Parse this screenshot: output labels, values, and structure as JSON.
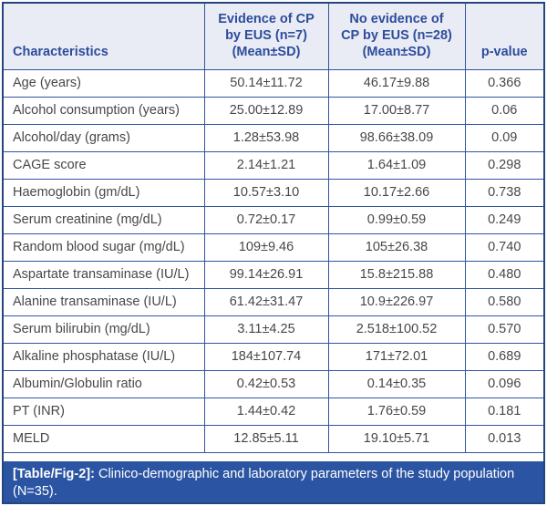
{
  "colors": {
    "header_bg": "#eaecf5",
    "header_text": "#2d4c9c",
    "grid_line": "#2f55a0",
    "frame_border": "#24457e",
    "body_text": "#474747",
    "caption_bg": "#2b54a3",
    "caption_text": "#ffffff"
  },
  "table": {
    "columns": [
      "Characteristics",
      "Evidence of CP\nby EUS (n=7)\n(Mean±SD)",
      "No evidence of\nCP by EUS (n=28)\n(Mean±SD)",
      "p-value"
    ],
    "rows": [
      [
        "Age (years)",
        "50.14±11.72",
        "46.17±9.88",
        "0.366"
      ],
      [
        "Alcohol consumption (years)",
        "25.00±12.89",
        "17.00±8.77",
        "0.06"
      ],
      [
        "Alcohol/day (grams)",
        "1.28±53.98",
        "98.66±38.09",
        "0.09"
      ],
      [
        "CAGE score",
        "2.14±1.21",
        "1.64±1.09",
        "0.298"
      ],
      [
        "Haemoglobin (gm/dL)",
        "10.57±3.10",
        "10.17±2.66",
        "0.738"
      ],
      [
        "Serum creatinine (mg/dL)",
        "0.72±0.17",
        "0.99±0.59",
        "0.249"
      ],
      [
        "Random blood sugar (mg/dL)",
        "109±9.46",
        "105±26.38",
        "0.740"
      ],
      [
        "Aspartate transaminase (IU/L)",
        "99.14±26.91",
        "15.8±215.88",
        "0.480"
      ],
      [
        "Alanine transaminase (IU/L)",
        "61.42±31.47",
        "10.9±226.97",
        "0.580"
      ],
      [
        "Serum bilirubin (mg/dL)",
        "3.11±4.25",
        "2.518±100.52",
        "0.570"
      ],
      [
        "Alkaline phosphatase (IU/L)",
        "184±107.74",
        "171±72.01",
        "0.689"
      ],
      [
        "Albumin/Globulin ratio",
        "0.42±0.53",
        "0.14±0.35",
        "0.096"
      ],
      [
        "PT (INR)",
        "1.44±0.42",
        "1.76±0.59",
        "0.181"
      ],
      [
        "MELD",
        "12.85±5.11",
        "19.10±5.71",
        "0.013"
      ]
    ]
  },
  "caption": {
    "label": "[Table/Fig-2]:",
    "text": " Clinico-demographic and laboratory parameters of the study population (N=35)."
  }
}
